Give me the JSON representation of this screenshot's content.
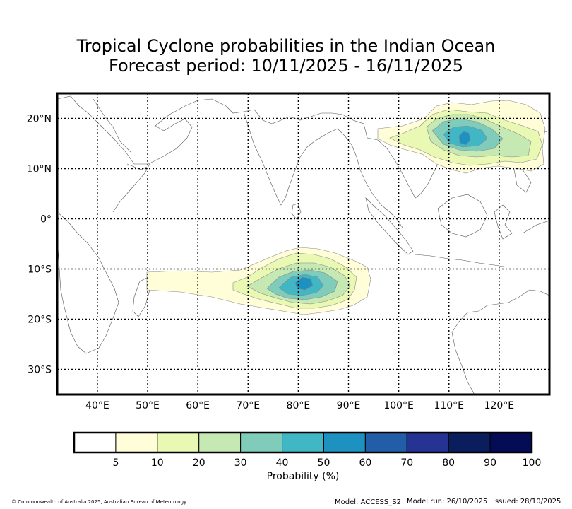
{
  "title": {
    "line1": "Tropical Cyclone probabilities in the Indian Ocean",
    "line2": "Forecast period: 10/11/2025 - 16/11/2025"
  },
  "map": {
    "lon_range": [
      32,
      130
    ],
    "lat_range": [
      -35,
      25
    ],
    "lon_ticks": [
      {
        "value": 40,
        "label": "40°E"
      },
      {
        "value": 50,
        "label": "50°E"
      },
      {
        "value": 60,
        "label": "60°E"
      },
      {
        "value": 70,
        "label": "70°E"
      },
      {
        "value": 80,
        "label": "80°E"
      },
      {
        "value": 90,
        "label": "90°E"
      },
      {
        "value": 100,
        "label": "100°E"
      },
      {
        "value": 110,
        "label": "110°E"
      },
      {
        "value": 120,
        "label": "120°E"
      }
    ],
    "lat_ticks": [
      {
        "value": 20,
        "label": "20°N"
      },
      {
        "value": 10,
        "label": "10°N"
      },
      {
        "value": 0,
        "label": "0°"
      },
      {
        "value": -10,
        "label": "10°S"
      },
      {
        "value": -20,
        "label": "20°S"
      },
      {
        "value": -30,
        "label": "30°S"
      }
    ],
    "probability_regions": [
      {
        "name": "south-indian-ocean",
        "center_lon": 81,
        "center_lat": -13,
        "peak_probability": 60
      },
      {
        "name": "south-china-sea",
        "center_lon": 113,
        "center_lat": 16,
        "peak_probability": 60
      }
    ]
  },
  "colorbar": {
    "label": "Probability (%)",
    "ticks": [
      "5",
      "10",
      "20",
      "30",
      "40",
      "50",
      "60",
      "70",
      "80",
      "90",
      "100"
    ],
    "colors": [
      "#ffffff",
      "#fffed8",
      "#e9f8b2",
      "#c6e8b3",
      "#80ccbb",
      "#41b6c4",
      "#1d91c0",
      "#225da8",
      "#253393",
      "#0a1e5d",
      "#040c56"
    ]
  },
  "footer": {
    "copyright": "© Commonwealth of Australia 2025, Australian Bureau of Meteorology",
    "model": "Model: ACCESS_S2",
    "model_run": "Model run: 26/10/2025",
    "issued": "Issued: 28/10/2025"
  }
}
